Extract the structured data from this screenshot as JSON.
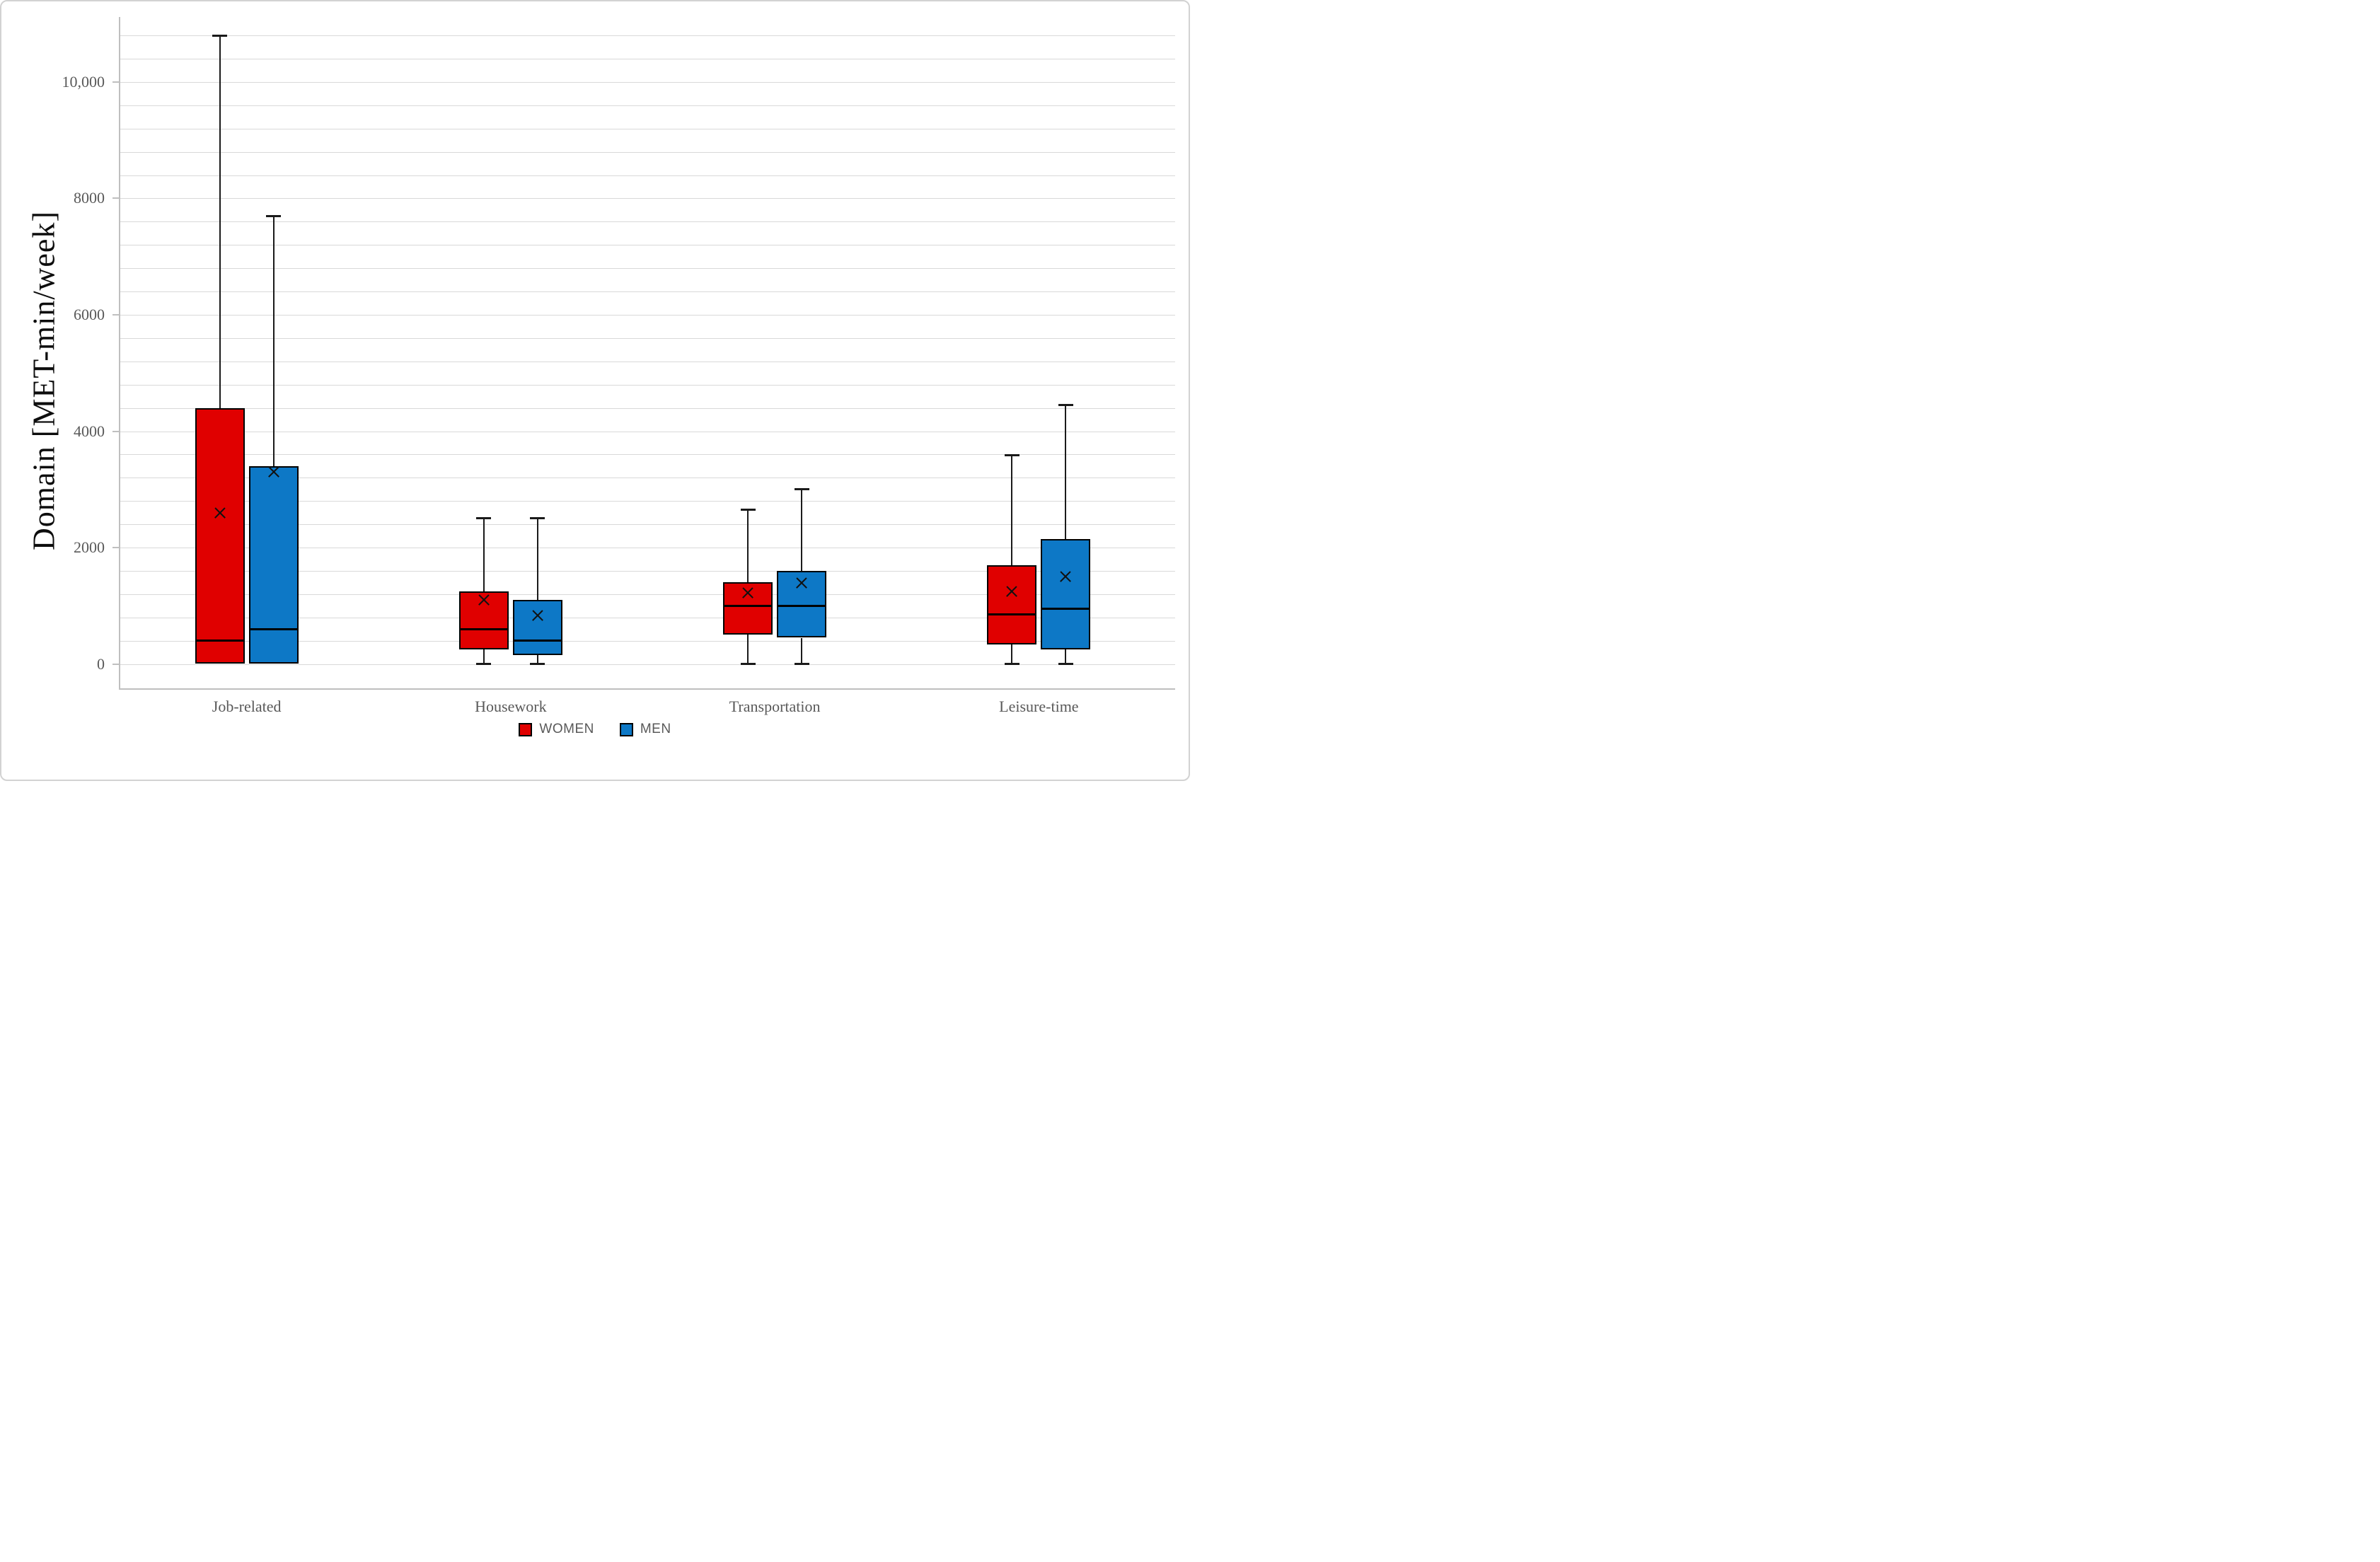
{
  "chart_data": {
    "type": "boxplot",
    "title": "",
    "ylabel": "Domain [MET-min/week]",
    "xlabel": "",
    "categories": [
      "Job-related",
      "Housework",
      "Transportation",
      "Leisure-time"
    ],
    "ylim": [
      -390,
      11150
    ],
    "gridline_step": 400,
    "grid_on": true,
    "y_ticks": [
      {
        "value": 0,
        "label": "0"
      },
      {
        "value": 2000,
        "label": "2000"
      },
      {
        "value": 4000,
        "label": "4000"
      },
      {
        "value": 6000,
        "label": "6000"
      },
      {
        "value": 8000,
        "label": "8000"
      },
      {
        "value": 10000,
        "label": "10,000"
      }
    ],
    "legend": {
      "position": "bottom",
      "entries": [
        {
          "name": "WOMEN",
          "color": "#e00000"
        },
        {
          "name": "MEN",
          "color": "#0d78c6"
        }
      ]
    },
    "series": [
      {
        "name": "WOMEN",
        "color": "#e00000",
        "boxes": [
          {
            "category": "Job-related",
            "min": 0,
            "q1": 0,
            "median": 400,
            "q3": 4400,
            "max": 10800,
            "mean": 2600
          },
          {
            "category": "Housework",
            "min": 0,
            "q1": 250,
            "median": 600,
            "q3": 1250,
            "max": 2500,
            "mean": 1100
          },
          {
            "category": "Transportation",
            "min": 0,
            "q1": 500,
            "median": 1000,
            "q3": 1400,
            "max": 2650,
            "mean": 1220
          },
          {
            "category": "Leisure-time",
            "min": 0,
            "q1": 330,
            "median": 850,
            "q3": 1700,
            "max": 3590,
            "mean": 1250
          }
        ]
      },
      {
        "name": "MEN",
        "color": "#0d78c6",
        "boxes": [
          {
            "category": "Job-related",
            "min": 0,
            "q1": 0,
            "median": 600,
            "q3": 3400,
            "max": 7700,
            "mean": 3300
          },
          {
            "category": "Housework",
            "min": 0,
            "q1": 150,
            "median": 400,
            "q3": 1100,
            "max": 2500,
            "mean": 830
          },
          {
            "category": "Transportation",
            "min": 0,
            "q1": 450,
            "median": 1000,
            "q3": 1600,
            "max": 3000,
            "mean": 1390
          },
          {
            "category": "Leisure-time",
            "min": 0,
            "q1": 250,
            "median": 950,
            "q3": 2150,
            "max": 4450,
            "mean": 1500
          }
        ]
      }
    ],
    "colors": {
      "gridline": "#d9d9d9",
      "axis_line": "#bfbfbf",
      "tick_text": "#595959",
      "box_outline": "#000000",
      "mean_marker": "#111111"
    }
  }
}
